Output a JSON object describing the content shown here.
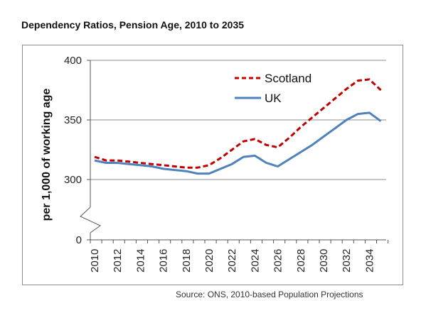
{
  "chart_data": {
    "type": "line",
    "title": "Dependency Ratios, Pension Age, 2010 to 2035",
    "ylabel": "per 1,000 of working age",
    "xlabel": "",
    "source": "Source: ONS, 2010-based Population Projections",
    "ylim": [
      0,
      400
    ],
    "y_axis_break": true,
    "y_ticks": [
      0,
      300,
      350,
      400
    ],
    "y_tick_labels": [
      "0",
      "300",
      "350",
      "400"
    ],
    "x_tick_labels": [
      "2010",
      "2012",
      "2014",
      "2016",
      "2018",
      "2020",
      "2022",
      "2024",
      "2026",
      "2028",
      "2030",
      "2032",
      "2034"
    ],
    "grid": "horizontal",
    "legend_position": "top-right",
    "x": [
      2010,
      2011,
      2012,
      2013,
      2014,
      2015,
      2016,
      2017,
      2018,
      2019,
      2020,
      2021,
      2022,
      2023,
      2024,
      2025,
      2026,
      2027,
      2028,
      2029,
      2030,
      2031,
      2032,
      2033,
      2034,
      2035
    ],
    "series": [
      {
        "name": "Scotland",
        "color": "#c00000",
        "style": "dashed",
        "values": [
          319,
          316,
          316,
          315,
          314,
          313,
          312,
          311,
          310,
          310,
          312,
          318,
          325,
          332,
          334,
          329,
          327,
          335,
          344,
          352,
          360,
          368,
          376,
          383,
          384,
          375
        ]
      },
      {
        "name": "UK",
        "color": "#4f81bd",
        "style": "solid",
        "values": [
          316,
          314,
          314,
          313,
          312,
          311,
          309,
          308,
          307,
          305,
          305,
          309,
          313,
          319,
          320,
          314,
          311,
          317,
          323,
          329,
          336,
          343,
          350,
          355,
          356,
          349
        ]
      }
    ]
  }
}
